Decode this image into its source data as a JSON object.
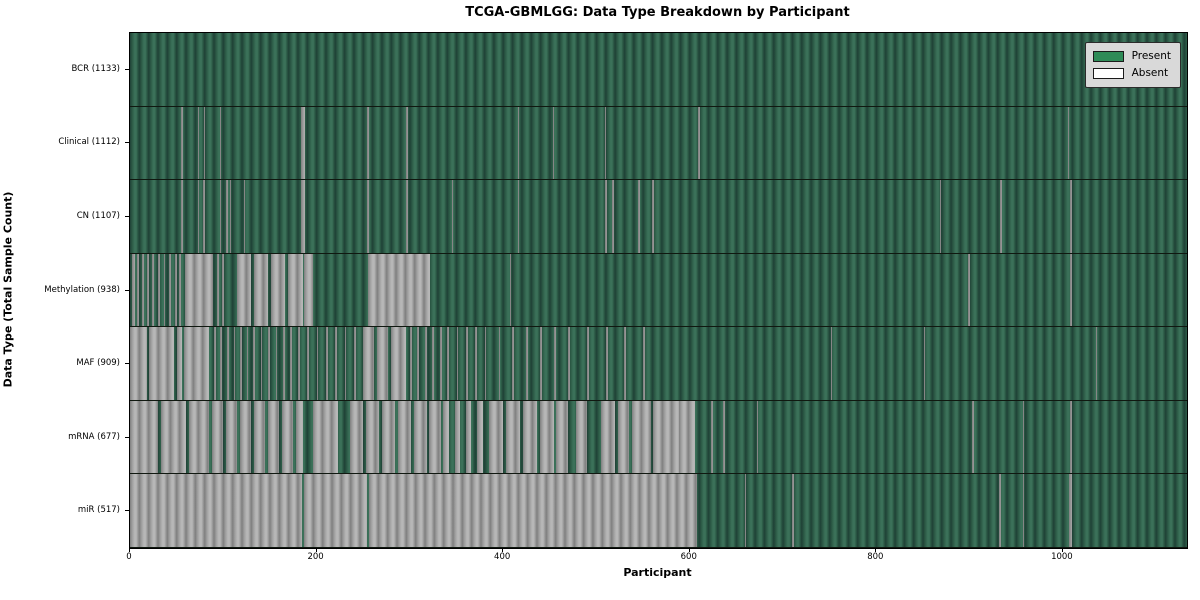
{
  "title": "TCGA-GBMLGG: Data Type Breakdown by Participant",
  "xlabel": "Participant",
  "ylabel": "Data Type (Total Sample Count)",
  "legend": {
    "items": [
      {
        "label": "Present",
        "color": "#2e8b57"
      },
      {
        "label": "Absent",
        "color": "#ffffff"
      }
    ]
  },
  "colors": {
    "present_base": "#2c5a46",
    "present_light": "#3b7159",
    "present_dark": "#1f4136",
    "absent_base": "#9e9e9e",
    "absent_light": "#b7b7b7",
    "absent_dark": "#7f7f7f",
    "legend_bg": "#d9d9d9",
    "plot_border": "#000000"
  },
  "chart_data": {
    "type": "heatmap",
    "title": "TCGA-GBMLGG: Data Type Breakdown by Participant",
    "xlabel": "Participant",
    "ylabel": "Data Type (Total Sample Count)",
    "x_min": 0,
    "x_max": 1133,
    "x_ticks": [
      0,
      200,
      400,
      600,
      800,
      1000
    ],
    "legend_entries": [
      "Present",
      "Absent"
    ],
    "legend_position": "upper right",
    "cell_states": {
      "present": "green",
      "absent": "white"
    },
    "rows": [
      {
        "label": "BCR (1133)",
        "data_type": "BCR",
        "sample_count": 1133,
        "absent_intervals": []
      },
      {
        "label": "Clinical (1112)",
        "data_type": "Clinical",
        "sample_count": 1112,
        "absent_intervals": [
          [
            55,
            57
          ],
          [
            73,
            74.5
          ],
          [
            79,
            80.5
          ],
          [
            96,
            97.5
          ],
          [
            183,
            188
          ],
          [
            254,
            256
          ],
          [
            296,
            298
          ],
          [
            416,
            417.5
          ],
          [
            453,
            454.5
          ],
          [
            509,
            510.5
          ],
          [
            609,
            611
          ],
          [
            1005,
            1006.5
          ]
        ]
      },
      {
        "label": "CN (1107)",
        "data_type": "CN",
        "sample_count": 1107,
        "absent_intervals": [
          [
            55,
            57
          ],
          [
            73,
            74.5
          ],
          [
            78,
            80
          ],
          [
            96,
            97.5
          ],
          [
            103,
            105
          ],
          [
            107,
            108.5
          ],
          [
            122,
            123.5
          ],
          [
            183,
            188
          ],
          [
            254,
            256
          ],
          [
            296,
            298
          ],
          [
            345,
            346.5
          ],
          [
            416,
            417.5
          ],
          [
            509,
            511
          ],
          [
            517,
            518.5
          ],
          [
            545,
            546.5
          ],
          [
            560,
            562
          ],
          [
            868,
            869.5
          ],
          [
            933,
            934.5
          ],
          [
            1008,
            1009.5
          ]
        ]
      },
      {
        "label": "Methylation (938)",
        "data_type": "Methylation",
        "sample_count": 938,
        "absent_intervals": [
          [
            2,
            5
          ],
          [
            8,
            10
          ],
          [
            13,
            15
          ],
          [
            18,
            20
          ],
          [
            24,
            26
          ],
          [
            30,
            32
          ],
          [
            36,
            38
          ],
          [
            42,
            44
          ],
          [
            48,
            50
          ],
          [
            53,
            55
          ],
          [
            59,
            89
          ],
          [
            93,
            95
          ],
          [
            99,
            101
          ],
          [
            115,
            130
          ],
          [
            133,
            148
          ],
          [
            151,
            166
          ],
          [
            169,
            185
          ],
          [
            187,
            196
          ],
          [
            255,
            322
          ],
          [
            407,
            408.5
          ],
          [
            898,
            900
          ],
          [
            1008,
            1009.5
          ]
        ]
      },
      {
        "label": "MAF (909)",
        "data_type": "MAF",
        "sample_count": 909,
        "absent_intervals": [
          [
            0,
            18
          ],
          [
            20,
            47
          ],
          [
            50,
            56
          ],
          [
            58,
            85
          ],
          [
            90,
            92
          ],
          [
            97,
            99
          ],
          [
            104,
            106
          ],
          [
            111,
            113
          ],
          [
            118,
            120
          ],
          [
            125,
            127
          ],
          [
            132,
            134
          ],
          [
            140,
            142
          ],
          [
            148,
            150
          ],
          [
            156,
            158
          ],
          [
            164,
            166
          ],
          [
            172,
            174
          ],
          [
            180,
            182
          ],
          [
            190,
            192
          ],
          [
            200,
            202
          ],
          [
            210,
            212
          ],
          [
            220,
            222
          ],
          [
            230,
            232
          ],
          [
            240,
            242
          ],
          [
            250,
            262
          ],
          [
            265,
            277
          ],
          [
            280,
            296
          ],
          [
            300,
            302
          ],
          [
            308,
            310
          ],
          [
            316,
            318
          ],
          [
            324,
            326
          ],
          [
            332,
            334
          ],
          [
            340,
            342
          ],
          [
            350,
            352
          ],
          [
            360,
            362
          ],
          [
            370,
            372
          ],
          [
            380,
            382
          ],
          [
            395,
            397
          ],
          [
            410,
            412
          ],
          [
            425,
            427
          ],
          [
            440,
            442
          ],
          [
            455,
            457
          ],
          [
            470,
            472
          ],
          [
            490,
            492
          ],
          [
            510,
            512
          ],
          [
            530,
            532
          ],
          [
            550,
            552
          ],
          [
            751,
            752.5
          ],
          [
            851,
            852.5
          ],
          [
            1035,
            1036.5
          ]
        ]
      },
      {
        "label": "mRNA (677)",
        "data_type": "mRNA",
        "sample_count": 677,
        "absent_intervals": [
          [
            0,
            30
          ],
          [
            33,
            60
          ],
          [
            63,
            85
          ],
          [
            88,
            100
          ],
          [
            103,
            115
          ],
          [
            118,
            130
          ],
          [
            133,
            145
          ],
          [
            148,
            160
          ],
          [
            163,
            175
          ],
          [
            178,
            185
          ],
          [
            196,
            223
          ],
          [
            236,
            250
          ],
          [
            253,
            267
          ],
          [
            270,
            284
          ],
          [
            287,
            301
          ],
          [
            304,
            318
          ],
          [
            321,
            333
          ],
          [
            336,
            342
          ],
          [
            348,
            354
          ],
          [
            360,
            366
          ],
          [
            372,
            378
          ],
          [
            385,
            400
          ],
          [
            403,
            418
          ],
          [
            421,
            436
          ],
          [
            439,
            454
          ],
          [
            457,
            470
          ],
          [
            478,
            490
          ],
          [
            505,
            520
          ],
          [
            523,
            535
          ],
          [
            538,
            558
          ],
          [
            561,
            588
          ],
          [
            589,
            606
          ],
          [
            623,
            624.5
          ],
          [
            636,
            637.5
          ],
          [
            672,
            673.5
          ],
          [
            903,
            904.5
          ],
          [
            957,
            958.5
          ],
          [
            1008,
            1009.5
          ]
        ]
      },
      {
        "label": "miR (517)",
        "data_type": "miR",
        "sample_count": 517,
        "absent_intervals": [
          [
            0,
            184.5
          ],
          [
            186,
            254.5
          ],
          [
            256,
            608
          ],
          [
            659,
            660.5
          ],
          [
            710,
            711.5
          ],
          [
            932,
            933.5
          ],
          [
            957,
            958.5
          ],
          [
            1007,
            1010
          ]
        ]
      }
    ]
  }
}
